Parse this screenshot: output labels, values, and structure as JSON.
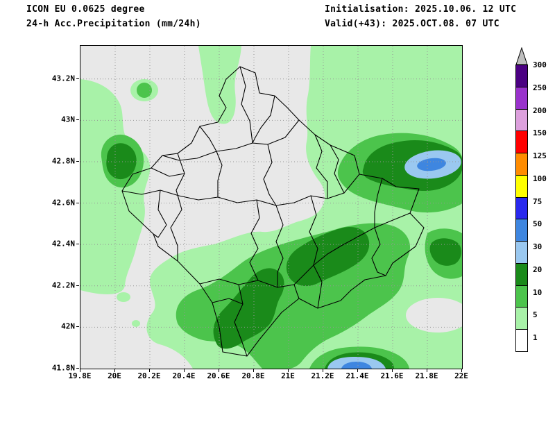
{
  "header": {
    "model_line": "ICON EU 0.0625 degree",
    "product_line": "24-h Acc.Precipitation (mm/24h)",
    "init_line": "Initialisation: 2025.10.06. 12 UTC",
    "valid_line": "Valid(+43): 2025.OCT.08. 07 UTC"
  },
  "map": {
    "region": "Kosovo municipalities",
    "x_tick_labels": [
      "19.8E",
      "20E",
      "20.2E",
      "20.4E",
      "20.6E",
      "20.8E",
      "21E",
      "21.2E",
      "21.4E",
      "21.6E",
      "21.8E",
      "22E"
    ],
    "y_tick_labels": [
      "43.2N",
      "43N",
      "42.8N",
      "42.6N",
      "42.4N",
      "42.2N",
      "42N",
      "41.8N"
    ],
    "colors": {
      "background_lt1mm": "#e8e8e8",
      "rain_1_5": "#a8f2a8",
      "rain_5_10": "#4cc44c",
      "rain_10_20": "#1a8a1a",
      "rain_20_30": "#9ac8f0",
      "rain_30_50": "#3e86e0",
      "boundaries": "#000000",
      "gridlines": "#969696"
    }
  },
  "colorbar": {
    "units": "mm/24h",
    "tick_labels": [
      "300",
      "250",
      "200",
      "150",
      "125",
      "100",
      "75",
      "50",
      "30",
      "20",
      "10",
      "5",
      "1"
    ],
    "segment_colors_top_to_bottom": [
      "#4b0082",
      "#9932cc",
      "#dda0dd",
      "#ff0000",
      "#ff8c00",
      "#ffff00",
      "#2929ee",
      "#3e86e0",
      "#9ac8f0",
      "#1a8a1a",
      "#4cc44c",
      "#a8f2a8",
      "#ffffff"
    ],
    "overflow_triangle_color": "#bebebe"
  }
}
